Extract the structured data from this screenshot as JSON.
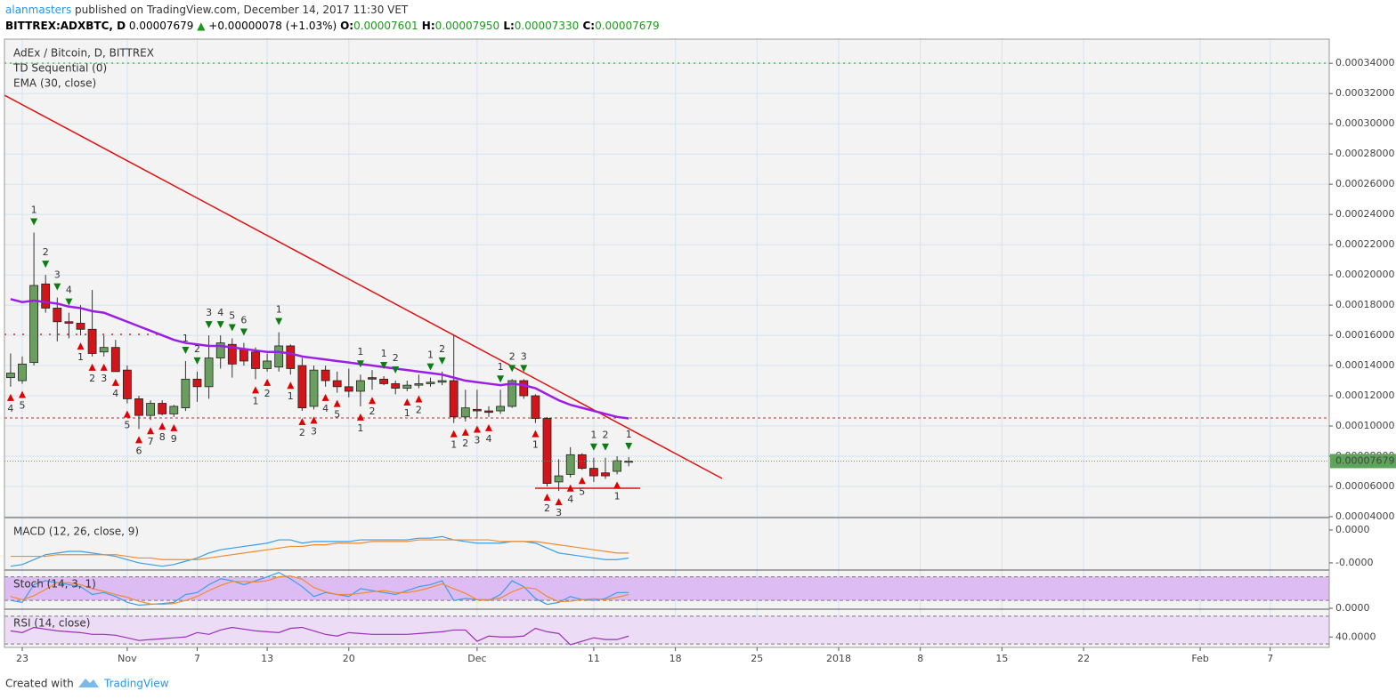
{
  "header": {
    "user": "alanmasters",
    "published": " published on TradingView.com, December 14, 2017 11:30 VET",
    "quote": [
      "BITTREX:ADXBTC, D",
      " 0.00007679 ",
      "▲",
      " +0.00000078 (+1.03%) ",
      "O:",
      "0.00007601",
      " H:",
      "0.00007950",
      " L:",
      "0.00007330",
      " C:",
      "0.00007679"
    ]
  },
  "chart_data": {
    "type": "candlestick",
    "title": "AdEx / Bitcoin, D, BITTREX",
    "x": [
      "2017-10-22",
      "2017-10-23",
      "2017-10-24",
      "2017-10-25",
      "2017-10-26",
      "2017-10-27",
      "2017-10-28",
      "2017-10-29",
      "2017-10-30",
      "2017-10-31",
      "2017-11-01",
      "2017-11-02",
      "2017-11-03",
      "2017-11-04",
      "2017-11-05",
      "2017-11-06",
      "2017-11-07",
      "2017-11-08",
      "2017-11-09",
      "2017-11-10",
      "2017-11-11",
      "2017-11-12",
      "2017-11-13",
      "2017-11-14",
      "2017-11-15",
      "2017-11-16",
      "2017-11-17",
      "2017-11-18",
      "2017-11-19",
      "2017-11-20",
      "2017-11-21",
      "2017-11-22",
      "2017-11-23",
      "2017-11-24",
      "2017-11-25",
      "2017-11-26",
      "2017-11-27",
      "2017-11-28",
      "2017-11-29",
      "2017-11-30",
      "2017-12-01",
      "2017-12-02",
      "2017-12-03",
      "2017-12-04",
      "2017-12-05",
      "2017-12-06",
      "2017-12-07",
      "2017-12-08",
      "2017-12-09",
      "2017-12-10",
      "2017-12-11",
      "2017-12-12",
      "2017-12-13",
      "2017-12-14"
    ],
    "open": [
      0.000132,
      0.00013,
      0.000142,
      0.000194,
      0.000178,
      0.000169,
      0.000168,
      0.000164,
      0.000149,
      0.000152,
      0.000137,
      0.000118,
      0.000107,
      0.000115,
      0.000108,
      0.000112,
      0.000131,
      0.000126,
      0.000145,
      0.000154,
      0.000151,
      0.000149,
      0.000138,
      0.000139,
      0.000153,
      0.00014,
      0.000113,
      0.000137,
      0.00013,
      0.000126,
      0.000123,
      0.000132,
      0.000131,
      0.000128,
      0.000125,
      0.000127,
      0.000128,
      0.000129,
      0.00013,
      0.000106,
      0.000111,
      0.00011,
      0.00011,
      0.000113,
      0.00013,
      0.00012,
      0.000105,
      6.3e-05,
      6.8e-05,
      8.1e-05,
      7.2e-05,
      6.9e-05,
      7e-05,
      7.601e-05
    ],
    "high": [
      0.000148,
      0.000146,
      0.000228,
      0.0002,
      0.000185,
      0.000175,
      0.00018,
      0.00019,
      0.00016,
      0.000157,
      0.00014,
      0.00012,
      0.000117,
      0.000117,
      0.000114,
      0.000143,
      0.000136,
      0.00016,
      0.00016,
      0.000158,
      0.000155,
      0.000152,
      0.000148,
      0.000162,
      0.000154,
      0.000145,
      0.00014,
      0.00014,
      0.000136,
      0.000138,
      0.000134,
      0.000137,
      0.000133,
      0.00013,
      0.00013,
      0.000134,
      0.000132,
      0.000136,
      0.00016,
      0.000124,
      0.000124,
      0.000113,
      0.000124,
      0.000131,
      0.000131,
      0.000121,
      0.000106,
      7.8e-05,
      8.6e-05,
      8.2e-05,
      7.9e-05,
      7.9e-05,
      8e-05,
      7.95e-05
    ],
    "low": [
      0.000126,
      0.000128,
      0.00014,
      0.000175,
      0.000156,
      0.000158,
      0.00016,
      0.000146,
      0.000146,
      0.000136,
      0.000115,
      9.8e-05,
      0.000104,
      0.000107,
      0.000106,
      0.00011,
      0.000116,
      0.000118,
      0.000138,
      0.000132,
      0.00014,
      0.000131,
      0.000136,
      0.000136,
      0.000134,
      0.00011,
      0.000111,
      0.000126,
      0.000122,
      0.000119,
      0.000113,
      0.000124,
      0.000127,
      0.000121,
      0.000123,
      0.000125,
      0.000126,
      0.000127,
      0.000102,
      0.000103,
      0.000105,
      0.000106,
      0.000108,
      0.000112,
      0.000118,
      0.000102,
      6e-05,
      5.7e-05,
      6.6e-05,
      7.1e-05,
      6.3e-05,
      6.5e-05,
      6.8e-05,
      7.33e-05
    ],
    "close": [
      0.000135,
      0.000141,
      0.000193,
      0.000178,
      0.000169,
      0.000168,
      0.000164,
      0.000148,
      0.000152,
      0.000136,
      0.000118,
      0.000107,
      0.000115,
      0.000108,
      0.000113,
      0.000131,
      0.000126,
      0.000145,
      0.000155,
      0.000141,
      0.000143,
      0.000138,
      0.000143,
      0.000153,
      0.000138,
      0.000112,
      0.000137,
      0.00013,
      0.000126,
      0.000123,
      0.00013,
      0.000131,
      0.000128,
      0.000125,
      0.000127,
      0.000128,
      0.000129,
      0.00013,
      0.000106,
      0.000112,
      0.00011,
      0.000109,
      0.000113,
      0.00013,
      0.00012,
      0.000105,
      6.2e-05,
      6.7e-05,
      8.1e-05,
      7.2e-05,
      6.7e-05,
      6.7e-05,
      7.7e-05,
      7.679e-05
    ],
    "up_color": "#6a9e5f",
    "down_color": "#d0161b",
    "ema": {
      "name": "EMA (30, close)",
      "color": "#9a1ee6",
      "values": [
        0.000184,
        0.000182,
        0.000183,
        0.000182,
        0.000181,
        0.000179,
        0.000178,
        0.000176,
        0.000175,
        0.000172,
        0.000169,
        0.000166,
        0.000163,
        0.00016,
        0.000157,
        0.000155,
        0.000154,
        0.000153,
        0.000153,
        0.000152,
        0.000151,
        0.00015,
        0.000149,
        0.000149,
        0.000148,
        0.000146,
        0.000145,
        0.000144,
        0.000143,
        0.000142,
        0.000141,
        0.00014,
        0.000139,
        0.000138,
        0.000137,
        0.000136,
        0.000135,
        0.000134,
        0.000132,
        0.00013,
        0.000129,
        0.000128,
        0.000127,
        0.000128,
        0.000127,
        0.000125,
        0.000121,
        0.000117,
        0.000114,
        0.000112,
        0.00011,
        0.000108,
        0.000106,
        0.000105
      ]
    },
    "td": {
      "name": "TD Sequential (0)",
      "below": {
        "color": "#e00000",
        "dates": [
          "2017-10-22",
          "2017-10-23",
          "2017-10-28",
          "2017-10-29",
          "2017-10-30",
          "2017-10-31",
          "2017-11-01",
          "2017-11-02",
          "2017-11-03",
          "2017-11-04",
          "2017-11-05",
          "2017-11-12",
          "2017-11-13",
          "2017-11-15",
          "2017-11-16",
          "2017-11-17",
          "2017-11-18",
          "2017-11-19",
          "2017-11-21",
          "2017-11-22",
          "2017-11-25",
          "2017-11-26",
          "2017-11-29",
          "2017-11-30",
          "2017-12-01",
          "2017-12-02",
          "2017-12-06",
          "2017-12-07",
          "2017-12-08",
          "2017-12-09",
          "2017-12-10",
          "2017-12-13"
        ],
        "labels": [
          "4",
          "5",
          "1",
          "2",
          "3",
          "4",
          "5",
          "6",
          "7",
          "8",
          "9",
          "1",
          "2",
          "1",
          "2",
          "3",
          "4",
          "5",
          "1",
          "2",
          "1",
          "2",
          "1",
          "2",
          "3",
          "4",
          "1",
          "2",
          "3",
          "4",
          "5",
          "1"
        ]
      },
      "above": {
        "color": "#0b7d12",
        "dates": [
          "2017-10-24",
          "2017-10-25",
          "2017-10-26",
          "2017-10-27",
          "2017-11-06",
          "2017-11-07",
          "2017-11-08",
          "2017-11-09",
          "2017-11-10",
          "2017-11-11",
          "2017-11-14",
          "2017-11-21",
          "2017-11-23",
          "2017-11-24",
          "2017-11-27",
          "2017-11-28",
          "2017-12-03",
          "2017-12-04",
          "2017-12-05",
          "2017-12-11",
          "2017-12-12",
          "2017-12-14"
        ],
        "labels": [
          "1",
          "2",
          "3",
          "4",
          "1",
          "2",
          "3",
          "4",
          "5",
          "6",
          "1",
          "1",
          "1",
          "2",
          "1",
          "2",
          "1",
          "2",
          "3",
          "1",
          "2",
          "1"
        ]
      }
    },
    "ylim": [
      3.94e-05,
      0.000356
    ],
    "yticks": [
      {
        "value": 0.00034,
        "label": "0.00034000"
      },
      {
        "value": 0.00032,
        "label": "0.00032000"
      },
      {
        "value": 0.0003,
        "label": "0.00030000"
      },
      {
        "value": 0.00028,
        "label": "0.00028000"
      },
      {
        "value": 0.00026,
        "label": "0.00026000"
      },
      {
        "value": 0.00024,
        "label": "0.00024000"
      },
      {
        "value": 0.00022,
        "label": "0.00022000"
      },
      {
        "value": 0.0002,
        "label": "0.00020000"
      },
      {
        "value": 0.00018,
        "label": "0.00018000"
      },
      {
        "value": 0.00016,
        "label": "0.00016000"
      },
      {
        "value": 0.00014,
        "label": "0.00014000"
      },
      {
        "value": 0.00012,
        "label": "0.00012000"
      },
      {
        "value": 0.0001,
        "label": "0.00010000"
      },
      {
        "value": 8e-05,
        "label": "0.00008000"
      },
      {
        "value": 6e-05,
        "label": "0.00006000"
      },
      {
        "value": 4e-05,
        "label": "0.00004000"
      }
    ],
    "xlim": [
      "2017-10-21",
      "2018-02-12"
    ],
    "xticks": [
      {
        "value": "2017-10-23",
        "label": "23"
      },
      {
        "value": "2017-11-01",
        "label": "Nov"
      },
      {
        "value": "2017-11-07",
        "label": "7"
      },
      {
        "value": "2017-11-13",
        "label": "13"
      },
      {
        "value": "2017-11-20",
        "label": "20"
      },
      {
        "value": "2017-12-01",
        "label": "Dec"
      },
      {
        "value": "2017-12-11",
        "label": "11"
      },
      {
        "value": "2017-12-18",
        "label": "18"
      },
      {
        "value": "2017-12-25",
        "label": "25"
      },
      {
        "value": "2018-01-01",
        "label": "2018"
      },
      {
        "value": "2018-01-08",
        "label": "8"
      },
      {
        "value": "2018-01-15",
        "label": "15"
      },
      {
        "value": "2018-01-22",
        "label": "22"
      },
      {
        "value": "2018-02-01",
        "label": "Feb"
      },
      {
        "value": "2018-02-07",
        "label": "7"
      }
    ],
    "grid": true,
    "last_price": {
      "value": 7.679e-05,
      "label": "0.00007679",
      "color": "#5ea45a"
    },
    "indicators": [
      {
        "name": "MACD (12, 26, close, 9)",
        "ylim": [
          -2.38e-05,
          7e-06
        ],
        "yticks": [
          {
            "value": 0,
            "label": "0.0000"
          },
          {
            "value": -2e-05,
            "label": "-0.0000"
          }
        ],
        "series": [
          {
            "color": "#3a9ee8",
            "values": [
              -2.2e-05,
              -2.1e-05,
              -1.8e-05,
              -1.5e-05,
              -1.4e-05,
              -1.3e-05,
              -1.3e-05,
              -1.4e-05,
              -1.5e-05,
              -1.6e-05,
              -1.8e-05,
              -2e-05,
              -2.1e-05,
              -2.2e-05,
              -2.1e-05,
              -1.9e-05,
              -1.7e-05,
              -1.4e-05,
              -1.2e-05,
              -1.1e-05,
              -1e-05,
              -9e-06,
              -8e-06,
              -6e-06,
              -6e-06,
              -8e-06,
              -7e-06,
              -7e-06,
              -7e-06,
              -7e-06,
              -6e-06,
              -6e-06,
              -6e-06,
              -6e-06,
              -6e-06,
              -5e-06,
              -5e-06,
              -4e-06,
              -6e-06,
              -7e-06,
              -8e-06,
              -8e-06,
              -8e-06,
              -7e-06,
              -7e-06,
              -8e-06,
              -1.1e-05,
              -1.4e-05,
              -1.5e-05,
              -1.6e-05,
              -1.7e-05,
              -1.8e-05,
              -1.8e-05,
              -1.7e-05
            ]
          },
          {
            "color": "#f28a2e",
            "values": [
              -1.6e-05,
              -1.6e-05,
              -1.6e-05,
              -1.6e-05,
              -1.5e-05,
              -1.5e-05,
              -1.5e-05,
              -1.5e-05,
              -1.5e-05,
              -1.5e-05,
              -1.6e-05,
              -1.7e-05,
              -1.7e-05,
              -1.8e-05,
              -1.8e-05,
              -1.8e-05,
              -1.8e-05,
              -1.7e-05,
              -1.6e-05,
              -1.5e-05,
              -1.4e-05,
              -1.3e-05,
              -1.2e-05,
              -1.1e-05,
              -1e-05,
              -1e-05,
              -9e-06,
              -9e-06,
              -8e-06,
              -8e-06,
              -8e-06,
              -7e-06,
              -7e-06,
              -7e-06,
              -7e-06,
              -6e-06,
              -6e-06,
              -6e-06,
              -6e-06,
              -6e-06,
              -6e-06,
              -6e-06,
              -7e-06,
              -7e-06,
              -7e-06,
              -7e-06,
              -8e-06,
              -9e-06,
              -1e-05,
              -1.1e-05,
              -1.2e-05,
              -1.3e-05,
              -1.4e-05,
              -1.4e-05
            ]
          }
        ]
      },
      {
        "name": "Stoch (14, 3, 1)",
        "ylim": [
          0,
          95
        ],
        "bands": [
          20,
          80
        ],
        "band_color": "#dcbcf2",
        "yticks": [
          {
            "value": 0,
            "label": "0.0000"
          }
        ],
        "series": [
          {
            "color": "#3a9ee8",
            "values": [
              20,
              15,
              60,
              70,
              65,
              60,
              55,
              35,
              40,
              30,
              15,
              8,
              10,
              12,
              15,
              35,
              40,
              60,
              75,
              70,
              60,
              70,
              80,
              91,
              75,
              55,
              30,
              40,
              35,
              30,
              50,
              45,
              40,
              35,
              45,
              55,
              60,
              70,
              20,
              25,
              22,
              20,
              35,
              70,
              55,
              25,
              10,
              15,
              30,
              22,
              20,
              25,
              40,
              40
            ]
          },
          {
            "color": "#f28a2e",
            "values": [
              30,
              22,
              32,
              48,
              65,
              65,
              60,
              50,
              43,
              35,
              28,
              18,
              11,
              10,
              12,
              20,
              30,
              45,
              58,
              68,
              68,
              67,
              70,
              80,
              82,
              74,
              53,
              42,
              35,
              35,
              38,
              42,
              45,
              40,
              40,
              45,
              53,
              62,
              50,
              38,
              22,
              22,
              26,
              42,
              53,
              50,
              30,
              17,
              18,
              22,
              24,
              22,
              28,
              35
            ]
          }
        ]
      },
      {
        "name": "RSI (14, close)",
        "ylim": [
          26.25,
          78.75
        ],
        "bands": [
          30,
          70
        ],
        "band_color": "#ecdcf6",
        "yticks": [
          {
            "value": 40,
            "label": "40.0000"
          }
        ],
        "series": [
          {
            "color": "#9a2fb8",
            "values": [
              48.8,
              46.3,
              53.8,
              51.3,
              48.8,
              47.5,
              46.3,
              43.8,
              43.8,
              42.5,
              38.8,
              35,
              36.3,
              37.5,
              38.8,
              40,
              46.3,
              43.8,
              50,
              53.8,
              51.3,
              48.8,
              47.5,
              46.3,
              52.5,
              53.8,
              48.8,
              43.8,
              41.3,
              46.3,
              45,
              43.8,
              43.8,
              43.8,
              43.8,
              45,
              46.3,
              47.5,
              50,
              50,
              33.8,
              41.3,
              40,
              40,
              41.3,
              52.5,
              47.5,
              45,
              28.8,
              33.8,
              38.8,
              36.3,
              36.3,
              41.3
            ]
          }
        ]
      }
    ]
  },
  "footer": {
    "created": "Created with",
    "brand": "TradingView"
  }
}
